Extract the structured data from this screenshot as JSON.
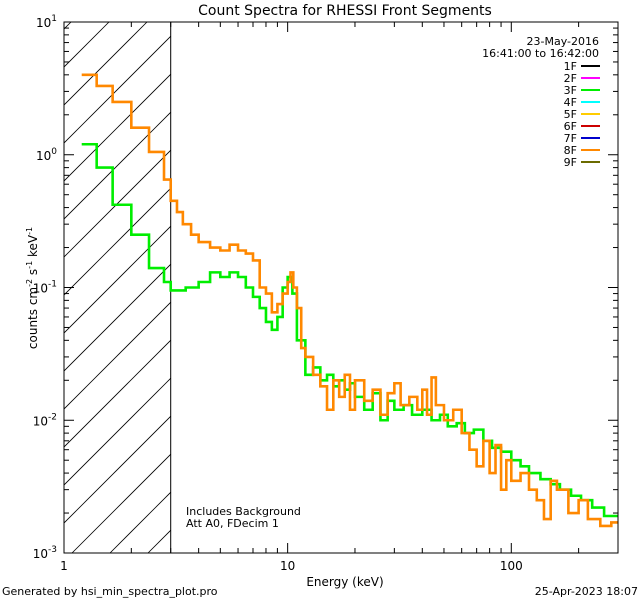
{
  "chart_data": {
    "type": "line",
    "title": "Count Spectra for RHESSI Front Segments",
    "xlabel": "Energy (keV)",
    "ylabel_parts": {
      "base": "counts cm",
      "exp1": "-2",
      "mid1": " s",
      "exp2": "-1",
      "mid2": " keV",
      "exp3": "-1"
    },
    "x_scale": "log",
    "y_scale": "log",
    "xlim": [
      1,
      300
    ],
    "ylim": [
      0.001,
      10
    ],
    "x_ticks": [
      {
        "value": 1,
        "label": "1"
      },
      {
        "value": 10,
        "label": "10"
      },
      {
        "value": 100,
        "label": "100"
      }
    ],
    "y_ticks": [
      {
        "value": 10,
        "base": "10",
        "exp": "1"
      },
      {
        "value": 1,
        "base": "10",
        "exp": "0"
      },
      {
        "value": 0.1,
        "base": "10",
        "exp": "-1"
      },
      {
        "value": 0.01,
        "base": "10",
        "exp": "-2"
      },
      {
        "value": 0.001,
        "base": "10",
        "exp": "-3"
      }
    ],
    "date": "23-May-2016",
    "time_range": "16:41:00 to 16:42:00",
    "legend": [
      {
        "name": "1F",
        "color": "#000000"
      },
      {
        "name": "2F",
        "color": "#ff00ff"
      },
      {
        "name": "3F",
        "color": "#00ee00"
      },
      {
        "name": "4F",
        "color": "#00ffff"
      },
      {
        "name": "5F",
        "color": "#ffcc00"
      },
      {
        "name": "6F",
        "color": "#cc0000"
      },
      {
        "name": "7F",
        "color": "#0000cc"
      },
      {
        "name": "8F",
        "color": "#ff8800"
      },
      {
        "name": "9F",
        "color": "#6b6b00"
      }
    ],
    "annotations": [
      "Includes Background",
      "Att A0, FDecim 1"
    ],
    "shaded_region": {
      "xmin": 1,
      "xmax": 3,
      "style": "hatched"
    },
    "series": [
      {
        "name": "8F",
        "color": "#ff8800",
        "points": [
          [
            1.2,
            4.0
          ],
          [
            1.4,
            4.0
          ],
          [
            1.4,
            3.3
          ],
          [
            1.65,
            3.3
          ],
          [
            1.65,
            2.5
          ],
          [
            2.0,
            2.5
          ],
          [
            2.0,
            1.6
          ],
          [
            2.4,
            1.6
          ],
          [
            2.4,
            1.05
          ],
          [
            2.8,
            1.05
          ],
          [
            2.8,
            0.65
          ],
          [
            3.0,
            0.65
          ],
          [
            3.0,
            0.45
          ],
          [
            3.2,
            0.45
          ],
          [
            3.2,
            0.37
          ],
          [
            3.4,
            0.37
          ],
          [
            3.4,
            0.3
          ],
          [
            3.7,
            0.3
          ],
          [
            3.7,
            0.25
          ],
          [
            4.0,
            0.25
          ],
          [
            4.0,
            0.22
          ],
          [
            4.5,
            0.22
          ],
          [
            4.5,
            0.2
          ],
          [
            5.0,
            0.2
          ],
          [
            5.0,
            0.19
          ],
          [
            5.5,
            0.19
          ],
          [
            5.5,
            0.21
          ],
          [
            6.0,
            0.21
          ],
          [
            6.0,
            0.19
          ],
          [
            6.5,
            0.19
          ],
          [
            6.5,
            0.18
          ],
          [
            7.0,
            0.18
          ],
          [
            7.0,
            0.16
          ],
          [
            7.5,
            0.16
          ],
          [
            7.5,
            0.1
          ],
          [
            8.0,
            0.1
          ],
          [
            8.0,
            0.09
          ],
          [
            8.5,
            0.09
          ],
          [
            8.5,
            0.065
          ],
          [
            9.0,
            0.065
          ],
          [
            9.0,
            0.075
          ],
          [
            9.5,
            0.075
          ],
          [
            9.5,
            0.09
          ],
          [
            10.0,
            0.09
          ],
          [
            10.0,
            0.11
          ],
          [
            10.3,
            0.11
          ],
          [
            10.3,
            0.13
          ],
          [
            10.6,
            0.13
          ],
          [
            10.6,
            0.1
          ],
          [
            11.0,
            0.1
          ],
          [
            11.0,
            0.07
          ],
          [
            11.5,
            0.07
          ],
          [
            11.5,
            0.035
          ],
          [
            12.0,
            0.035
          ],
          [
            12.0,
            0.03
          ],
          [
            13.0,
            0.03
          ],
          [
            13.0,
            0.022
          ],
          [
            14.0,
            0.022
          ],
          [
            14.0,
            0.018
          ],
          [
            15.0,
            0.018
          ],
          [
            15.0,
            0.012
          ],
          [
            16.0,
            0.012
          ],
          [
            16.0,
            0.02
          ],
          [
            17.0,
            0.02
          ],
          [
            17.0,
            0.015
          ],
          [
            18.0,
            0.015
          ],
          [
            18.0,
            0.022
          ],
          [
            19.0,
            0.022
          ],
          [
            19.0,
            0.012
          ],
          [
            20.0,
            0.012
          ],
          [
            20.0,
            0.02
          ],
          [
            22.0,
            0.02
          ],
          [
            22.0,
            0.014
          ],
          [
            24.0,
            0.014
          ],
          [
            24.0,
            0.017
          ],
          [
            26.0,
            0.017
          ],
          [
            26.0,
            0.011
          ],
          [
            28.0,
            0.011
          ],
          [
            28.0,
            0.016
          ],
          [
            30.0,
            0.016
          ],
          [
            30.0,
            0.019
          ],
          [
            32.0,
            0.019
          ],
          [
            32.0,
            0.013
          ],
          [
            35.0,
            0.013
          ],
          [
            35.0,
            0.015
          ],
          [
            38.0,
            0.015
          ],
          [
            38.0,
            0.012
          ],
          [
            40.0,
            0.012
          ],
          [
            40.0,
            0.017
          ],
          [
            42.0,
            0.017
          ],
          [
            42.0,
            0.011
          ],
          [
            44.0,
            0.011
          ],
          [
            44.0,
            0.021
          ],
          [
            46.0,
            0.021
          ],
          [
            46.0,
            0.013
          ],
          [
            50.0,
            0.013
          ],
          [
            50.0,
            0.01
          ],
          [
            55.0,
            0.01
          ],
          [
            55.0,
            0.012
          ],
          [
            60.0,
            0.012
          ],
          [
            60.0,
            0.008
          ],
          [
            65.0,
            0.008
          ],
          [
            65.0,
            0.006
          ],
          [
            70.0,
            0.006
          ],
          [
            70.0,
            0.0045
          ],
          [
            75.0,
            0.0045
          ],
          [
            75.0,
            0.007
          ],
          [
            80.0,
            0.007
          ],
          [
            80.0,
            0.004
          ],
          [
            85.0,
            0.004
          ],
          [
            85.0,
            0.0065
          ],
          [
            90.0,
            0.0065
          ],
          [
            90.0,
            0.003
          ],
          [
            95.0,
            0.003
          ],
          [
            95.0,
            0.005
          ],
          [
            100.0,
            0.005
          ],
          [
            100.0,
            0.0035
          ],
          [
            110.0,
            0.0035
          ],
          [
            110.0,
            0.004
          ],
          [
            120.0,
            0.004
          ],
          [
            120.0,
            0.003
          ],
          [
            130.0,
            0.003
          ],
          [
            130.0,
            0.0025
          ],
          [
            140.0,
            0.0025
          ],
          [
            140.0,
            0.0018
          ],
          [
            150.0,
            0.0018
          ],
          [
            150.0,
            0.0035
          ],
          [
            160.0,
            0.0035
          ],
          [
            160.0,
            0.003
          ],
          [
            180.0,
            0.003
          ],
          [
            180.0,
            0.002
          ],
          [
            200.0,
            0.002
          ],
          [
            200.0,
            0.0025
          ],
          [
            220.0,
            0.0025
          ],
          [
            220.0,
            0.0018
          ],
          [
            250.0,
            0.0018
          ],
          [
            250.0,
            0.0016
          ],
          [
            280.0,
            0.0016
          ],
          [
            280.0,
            0.0017
          ],
          [
            300.0,
            0.0017
          ]
        ]
      },
      {
        "name": "3F",
        "color": "#00ee00",
        "points": [
          [
            1.2,
            1.2
          ],
          [
            1.4,
            1.2
          ],
          [
            1.4,
            0.8
          ],
          [
            1.65,
            0.8
          ],
          [
            1.65,
            0.42
          ],
          [
            2.0,
            0.42
          ],
          [
            2.0,
            0.25
          ],
          [
            2.4,
            0.25
          ],
          [
            2.4,
            0.14
          ],
          [
            2.8,
            0.14
          ],
          [
            2.8,
            0.11
          ],
          [
            3.0,
            0.11
          ],
          [
            3.0,
            0.095
          ],
          [
            3.5,
            0.095
          ],
          [
            3.5,
            0.1
          ],
          [
            4.0,
            0.1
          ],
          [
            4.0,
            0.11
          ],
          [
            4.5,
            0.11
          ],
          [
            4.5,
            0.13
          ],
          [
            5.0,
            0.13
          ],
          [
            5.0,
            0.12
          ],
          [
            5.5,
            0.12
          ],
          [
            5.5,
            0.13
          ],
          [
            6.0,
            0.13
          ],
          [
            6.0,
            0.12
          ],
          [
            6.5,
            0.12
          ],
          [
            6.5,
            0.1
          ],
          [
            7.0,
            0.1
          ],
          [
            7.0,
            0.085
          ],
          [
            7.5,
            0.085
          ],
          [
            7.5,
            0.07
          ],
          [
            8.0,
            0.07
          ],
          [
            8.0,
            0.055
          ],
          [
            8.5,
            0.055
          ],
          [
            8.5,
            0.048
          ],
          [
            9.0,
            0.048
          ],
          [
            9.0,
            0.06
          ],
          [
            9.5,
            0.06
          ],
          [
            9.5,
            0.1
          ],
          [
            10.0,
            0.1
          ],
          [
            10.0,
            0.12
          ],
          [
            10.5,
            0.12
          ],
          [
            10.5,
            0.09
          ],
          [
            11.0,
            0.09
          ],
          [
            11.0,
            0.04
          ],
          [
            12.0,
            0.04
          ],
          [
            12.0,
            0.022
          ],
          [
            13.0,
            0.022
          ],
          [
            13.0,
            0.025
          ],
          [
            14.0,
            0.025
          ],
          [
            14.0,
            0.02
          ],
          [
            15.0,
            0.02
          ],
          [
            15.0,
            0.022
          ],
          [
            16.0,
            0.022
          ],
          [
            16.0,
            0.018
          ],
          [
            17.0,
            0.018
          ],
          [
            17.0,
            0.02
          ],
          [
            18.0,
            0.02
          ],
          [
            18.0,
            0.017
          ],
          [
            19.0,
            0.017
          ],
          [
            19.0,
            0.019
          ],
          [
            20.0,
            0.019
          ],
          [
            20.0,
            0.015
          ],
          [
            22.0,
            0.015
          ],
          [
            22.0,
            0.012
          ],
          [
            24.0,
            0.012
          ],
          [
            24.0,
            0.016
          ],
          [
            26.0,
            0.016
          ],
          [
            26.0,
            0.01
          ],
          [
            28.0,
            0.01
          ],
          [
            28.0,
            0.014
          ],
          [
            30.0,
            0.014
          ],
          [
            30.0,
            0.012
          ],
          [
            33.0,
            0.012
          ],
          [
            33.0,
            0.013
          ],
          [
            36.0,
            0.013
          ],
          [
            36.0,
            0.011
          ],
          [
            40.0,
            0.011
          ],
          [
            40.0,
            0.012
          ],
          [
            44.0,
            0.012
          ],
          [
            44.0,
            0.01
          ],
          [
            48.0,
            0.01
          ],
          [
            48.0,
            0.011
          ],
          [
            52.0,
            0.011
          ],
          [
            52.0,
            0.009
          ],
          [
            57.0,
            0.009
          ],
          [
            57.0,
            0.0095
          ],
          [
            62.0,
            0.0095
          ],
          [
            62.0,
            0.008
          ],
          [
            68.0,
            0.008
          ],
          [
            68.0,
            0.0085
          ],
          [
            75.0,
            0.0085
          ],
          [
            75.0,
            0.007
          ],
          [
            82.0,
            0.007
          ],
          [
            82.0,
            0.0062
          ],
          [
            90.0,
            0.0062
          ],
          [
            90.0,
            0.0058
          ],
          [
            100.0,
            0.0058
          ],
          [
            100.0,
            0.005
          ],
          [
            110.0,
            0.005
          ],
          [
            110.0,
            0.0045
          ],
          [
            120.0,
            0.0045
          ],
          [
            120.0,
            0.004
          ],
          [
            135.0,
            0.004
          ],
          [
            135.0,
            0.0036
          ],
          [
            150.0,
            0.0036
          ],
          [
            150.0,
            0.0033
          ],
          [
            165.0,
            0.0033
          ],
          [
            165.0,
            0.003
          ],
          [
            185.0,
            0.003
          ],
          [
            185.0,
            0.0027
          ],
          [
            205.0,
            0.0027
          ],
          [
            205.0,
            0.0025
          ],
          [
            230.0,
            0.0025
          ],
          [
            230.0,
            0.0022
          ],
          [
            260.0,
            0.0022
          ],
          [
            260.0,
            0.0019
          ],
          [
            300.0,
            0.0019
          ]
        ]
      }
    ]
  },
  "footer": {
    "generated_by": "Generated by hsi_min_spectra_plot.pro",
    "timestamp": "25-Apr-2023 18:07"
  }
}
